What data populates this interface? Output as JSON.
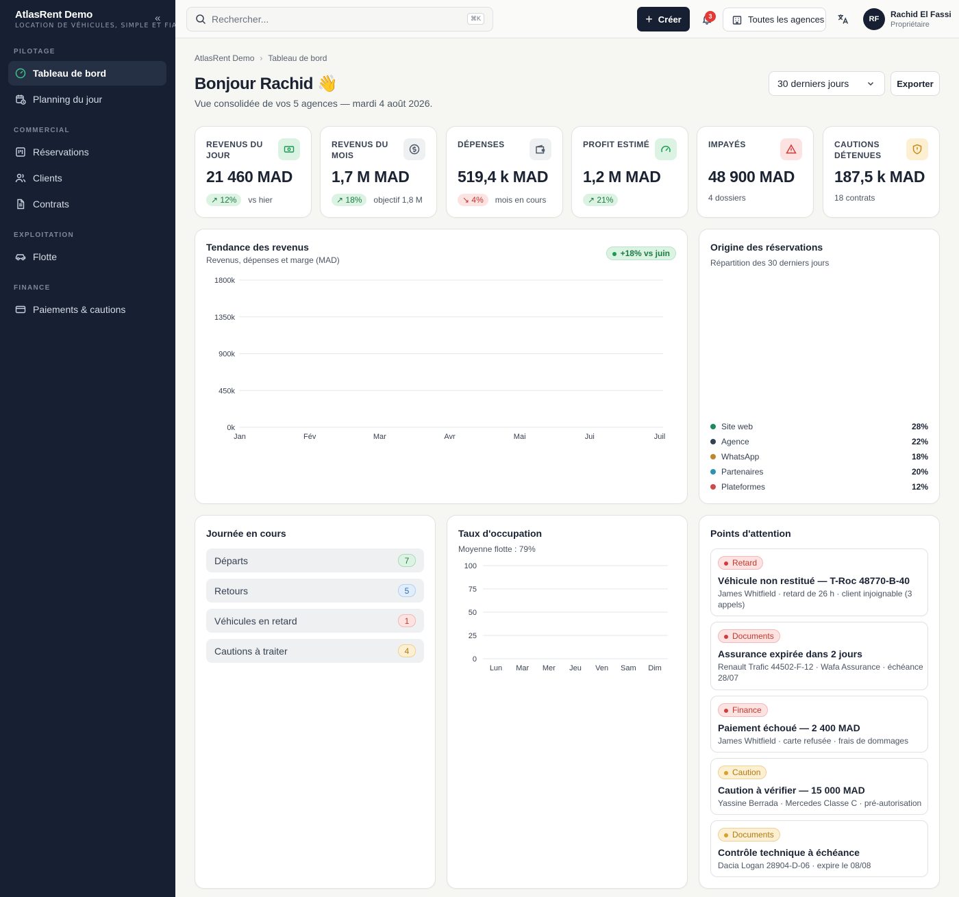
{
  "brand": {
    "name": "AtlasRent Demo",
    "tagline": "LOCATION DE VÉHICULES, SIMPLE ET FIA"
  },
  "sidebar": {
    "sections": [
      {
        "label": "PILOTAGE"
      },
      {
        "label": "COMMERCIAL"
      },
      {
        "label": "EXPLOITATION"
      },
      {
        "label": "FINANCE"
      }
    ],
    "items": [
      {
        "label": "Tableau de bord",
        "icon": "gauge-icon",
        "active": true
      },
      {
        "label": "Planning du jour",
        "icon": "calendar-clock-icon"
      },
      {
        "label": "Réservations",
        "icon": "board-icon"
      },
      {
        "label": "Clients",
        "icon": "users-icon"
      },
      {
        "label": "Contrats",
        "icon": "file-icon"
      },
      {
        "label": "Flotte",
        "icon": "car-icon"
      },
      {
        "label": "Paiements & cautions",
        "icon": "credit-card-icon"
      }
    ]
  },
  "topbar": {
    "search_placeholder": "Rechercher...",
    "shortcut": "⌘K",
    "create_label": "Créer",
    "notifications": "3",
    "agencies_label": "Toutes les agences",
    "user": {
      "initials": "RF",
      "name": "Rachid El Fassi",
      "role": "Propriétaire"
    }
  },
  "breadcrumb": [
    "AtlasRent Demo",
    "Tableau de bord"
  ],
  "header": {
    "title": "Bonjour Rachid 👋",
    "subtitle": "Vue consolidée de vos 5 agences — mardi 4 août 2026.",
    "period": "30 derniers jours",
    "export_label": "Exporter"
  },
  "kpis": [
    {
      "label": "REVENUS DU JOUR",
      "value": "21 460 MAD",
      "delta": "↗ 12%",
      "trend": "up",
      "note": "vs hier",
      "icon": "banknote-icon",
      "color": "#1c9a55"
    },
    {
      "label": "REVENUS DU MOIS",
      "value": "1,7 M MAD",
      "delta": "↗ 18%",
      "trend": "up",
      "note": "objectif 1,8 M",
      "icon": "dollar-circle-icon",
      "color": "#4b5563"
    },
    {
      "label": "DÉPENSES",
      "value": "519,4 k MAD",
      "delta": "↘ 4%",
      "trend": "down",
      "note": "mois en cours",
      "icon": "wallet-icon",
      "color": "#4b5563"
    },
    {
      "label": "PROFIT ESTIMÉ",
      "value": "1,2 M MAD",
      "delta": "↗ 21%",
      "trend": "up",
      "note": "",
      "icon": "gauge-icon",
      "color": "#1c9a55"
    },
    {
      "label": "IMPAYÉS",
      "value": "48 900 MAD",
      "delta": "",
      "trend": "",
      "note": "4 dossiers",
      "icon": "alert-triangle-icon",
      "color": "#d23b3b"
    },
    {
      "label": "CAUTIONS DÉTENUES",
      "value": "187,5 k MAD",
      "delta": "",
      "trend": "",
      "note": "18 contrats",
      "icon": "shield-icon",
      "color": "#c98a16"
    }
  ],
  "trend_card": {
    "title": "Tendance des revenus",
    "subtitle": "Revenus, dépenses et marge (MAD)",
    "badge": "+18% vs juin"
  },
  "origin_card": {
    "title": "Origine des réservations",
    "subtitle": "Répartition des 30 derniers jours",
    "items": [
      {
        "label": "Site web",
        "pct": "28%",
        "color": "#1c8a5a"
      },
      {
        "label": "Agence",
        "pct": "22%",
        "color": "#334155"
      },
      {
        "label": "WhatsApp",
        "pct": "18%",
        "color": "#c0862d"
      },
      {
        "label": "Partenaires",
        "pct": "20%",
        "color": "#2b93b1"
      },
      {
        "label": "Plateformes",
        "pct": "12%",
        "color": "#cc4b4b"
      }
    ]
  },
  "day_card": {
    "title": "Journée en cours",
    "rows": [
      {
        "label": "Départs",
        "count": "7",
        "color": "#1c7a43",
        "bg": "#dcf3e4"
      },
      {
        "label": "Retours",
        "count": "5",
        "color": "#2a6fb0",
        "bg": "#e0edfb"
      },
      {
        "label": "Véhicules en retard",
        "count": "1",
        "color": "#c0392b",
        "bg": "#fde2e2"
      },
      {
        "label": "Cautions à traiter",
        "count": "4",
        "color": "#b07a14",
        "bg": "#fcefd2"
      }
    ]
  },
  "occupancy_card": {
    "title": "Taux d'occupation",
    "subtitle": "Moyenne flotte : 79%"
  },
  "attention_card": {
    "title": "Points d'attention",
    "items": [
      {
        "tag": "Retard",
        "tone": "red",
        "title": "Véhicule non restitué — T-Roc 48770-B-40",
        "desc": "James Whitfield · retard de 26 h · client injoignable (3 appels)"
      },
      {
        "tag": "Documents",
        "tone": "red",
        "title": "Assurance expirée dans 2 jours",
        "desc": "Renault Trafic 44502-F-12 · Wafa Assurance · échéance 28/07"
      },
      {
        "tag": "Finance",
        "tone": "red",
        "title": "Paiement échoué — 2 400 MAD",
        "desc": "James Whitfield · carte refusée · frais de dommages"
      },
      {
        "tag": "Caution",
        "tone": "amber",
        "title": "Caution à vérifier — 15 000 MAD",
        "desc": "Yassine Berrada · Mercedes Classe C · pré-autorisation"
      },
      {
        "tag": "Documents",
        "tone": "amber",
        "title": "Contrôle technique à échéance",
        "desc": "Dacia Logan 28904-D-06 · expire le 08/08"
      }
    ]
  },
  "chart_data": [
    {
      "type": "line",
      "title": "Tendance des revenus",
      "categories": [
        "Jan",
        "Fév",
        "Mar",
        "Avr",
        "Mai",
        "Jui",
        "Juil"
      ],
      "yticks": [
        "1800k",
        "1350k",
        "900k",
        "450k",
        "0k"
      ],
      "ylim": [
        0,
        1800000
      ],
      "series": [],
      "grid": true
    },
    {
      "type": "bar",
      "title": "Taux d'occupation",
      "categories": [
        "Lun",
        "Mar",
        "Mer",
        "Jeu",
        "Ven",
        "Sam",
        "Dim"
      ],
      "yticks": [
        "100",
        "75",
        "50",
        "25",
        "0"
      ],
      "ylim": [
        0,
        100
      ],
      "series": [],
      "grid": true
    }
  ]
}
